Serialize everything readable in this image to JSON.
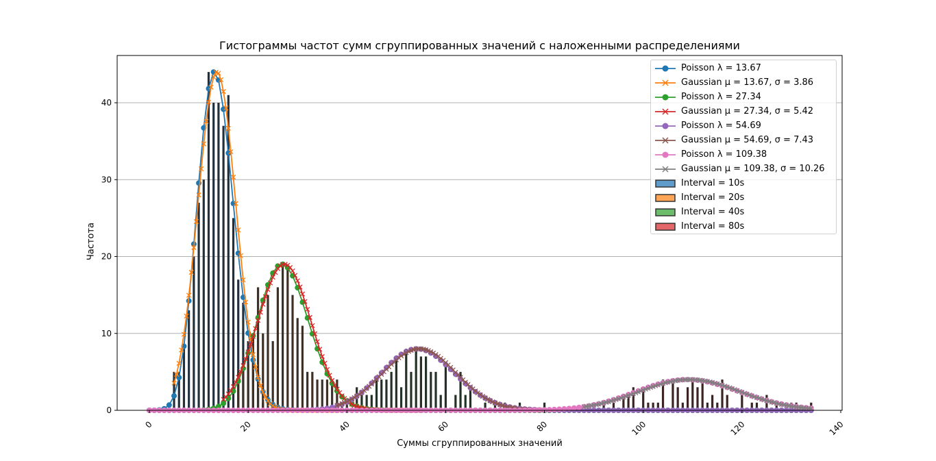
{
  "chart_data": {
    "type": "bar",
    "title": "Гистограммы частот сумм сгруппированных значений с наложенными распределениями",
    "xlabel": "Суммы сгруппированных значений",
    "ylabel": "Частота",
    "xlim": [
      -7,
      141
    ],
    "ylim": [
      0,
      46
    ],
    "xticks": [
      0,
      20,
      40,
      60,
      80,
      100,
      120,
      140
    ],
    "yticks": [
      0,
      10,
      20,
      30,
      40
    ],
    "grid": "y",
    "legend_position": "upper right",
    "histograms": [
      {
        "name": "Interval = 10s",
        "color": "#1f77b4",
        "x": [
          4,
          5,
          6,
          7,
          8,
          9,
          10,
          11,
          12,
          13,
          14,
          15,
          16,
          17,
          18,
          19,
          20,
          21,
          22,
          23
        ],
        "values": [
          1,
          5,
          5,
          8,
          13,
          20,
          27,
          30,
          44,
          40,
          40,
          37,
          41,
          25,
          17,
          14,
          9,
          7,
          5,
          1
        ]
      },
      {
        "name": "Interval = 20s",
        "color": "#ff7f0e",
        "x": [
          18,
          19,
          20,
          21,
          22,
          23,
          24,
          25,
          26,
          27,
          28,
          29,
          30,
          31,
          32,
          33,
          34,
          35,
          36,
          37,
          38,
          39,
          40
        ],
        "values": [
          5,
          5,
          6,
          10,
          16,
          10,
          15,
          9,
          16,
          19,
          19,
          15,
          12,
          11,
          5,
          5,
          4,
          4,
          4,
          4,
          4,
          1,
          1
        ]
      },
      {
        "name": "Interval = 40s",
        "color": "#2ca02c",
        "x": [
          42,
          43,
          44,
          45,
          46,
          47,
          48,
          49,
          50,
          51,
          52,
          53,
          54,
          55,
          56,
          57,
          58,
          59,
          60,
          62,
          63,
          64,
          65,
          68,
          70,
          72,
          75,
          80
        ],
        "values": [
          3,
          2,
          2,
          2,
          4,
          4,
          4,
          5,
          7,
          3,
          8,
          5,
          8,
          7,
          7,
          5,
          5,
          2,
          6,
          2,
          5,
          2,
          3,
          1,
          1,
          1,
          1,
          1
        ]
      },
      {
        "name": "Interval = 80s",
        "color": "#d62728",
        "x": [
          90,
          92,
          94,
          96,
          97,
          98,
          100,
          101,
          102,
          103,
          104,
          106,
          107,
          108,
          109,
          110,
          111,
          112,
          113,
          114,
          115,
          116,
          117,
          120,
          122,
          123,
          125,
          127,
          130,
          131,
          134
        ],
        "values": [
          1,
          1,
          1,
          2,
          2,
          3,
          3,
          1,
          1,
          1,
          4,
          4,
          3,
          1,
          3,
          4,
          3,
          4,
          1,
          2,
          1,
          4,
          2,
          2,
          1,
          1,
          2,
          1,
          1,
          1,
          1
        ]
      }
    ],
    "series": [
      {
        "name": "Poisson λ = 13.67",
        "type": "poisson",
        "lambda": 13.67,
        "color": "#1f77b4",
        "marker": "o",
        "peak": 44
      },
      {
        "name": "Gaussian μ = 13.67, σ = 3.86",
        "type": "gaussian",
        "mu": 13.67,
        "sigma": 3.86,
        "color": "#ff7f0e",
        "marker": "x",
        "peak": 44
      },
      {
        "name": "Poisson λ = 27.34",
        "type": "poisson",
        "lambda": 27.34,
        "color": "#2ca02c",
        "marker": "o",
        "peak": 19
      },
      {
        "name": "Gaussian μ = 27.34, σ = 5.42",
        "type": "gaussian",
        "mu": 27.34,
        "sigma": 5.42,
        "color": "#d62728",
        "marker": "x",
        "peak": 19
      },
      {
        "name": "Poisson λ = 54.69",
        "type": "poisson",
        "lambda": 54.69,
        "color": "#9467bd",
        "marker": "o",
        "peak": 8
      },
      {
        "name": "Gaussian μ = 54.69, σ = 7.43",
        "type": "gaussian",
        "mu": 54.69,
        "sigma": 7.43,
        "color": "#8c564b",
        "marker": "x",
        "peak": 8
      },
      {
        "name": "Poisson λ = 109.38",
        "type": "poisson",
        "lambda": 109.38,
        "color": "#e377c2",
        "marker": "o",
        "peak": 4
      },
      {
        "name": "Gaussian μ = 109.38, σ = 10.26",
        "type": "gaussian",
        "mu": 109.38,
        "sigma": 10.26,
        "color": "#7f7f7f",
        "marker": "x",
        "peak": 4
      }
    ]
  },
  "legend": {
    "items": [
      {
        "label": "Poisson λ = 13.67",
        "kind": "line",
        "marker": "o",
        "color": "#1f77b4"
      },
      {
        "label": "Gaussian μ = 13.67, σ = 3.86",
        "kind": "line",
        "marker": "x",
        "color": "#ff7f0e"
      },
      {
        "label": "Poisson λ = 27.34",
        "kind": "line",
        "marker": "o",
        "color": "#2ca02c"
      },
      {
        "label": "Gaussian μ = 27.34, σ = 5.42",
        "kind": "line",
        "marker": "x",
        "color": "#d62728"
      },
      {
        "label": "Poisson λ = 54.69",
        "kind": "line",
        "marker": "o",
        "color": "#9467bd"
      },
      {
        "label": "Gaussian μ = 54.69, σ = 7.43",
        "kind": "line",
        "marker": "x",
        "color": "#8c564b"
      },
      {
        "label": "Poisson λ = 109.38",
        "kind": "line",
        "marker": "o",
        "color": "#e377c2"
      },
      {
        "label": "Gaussian μ = 109.38, σ = 10.26",
        "kind": "line",
        "marker": "x",
        "color": "#7f7f7f"
      },
      {
        "label": "Interval = 10s",
        "kind": "patch",
        "color": "#5f9ccb"
      },
      {
        "label": "Interval = 20s",
        "kind": "patch",
        "color": "#ffa555"
      },
      {
        "label": "Interval = 40s",
        "kind": "patch",
        "color": "#6bbd6b"
      },
      {
        "label": "Interval = 80s",
        "kind": "patch",
        "color": "#e36768"
      }
    ]
  }
}
